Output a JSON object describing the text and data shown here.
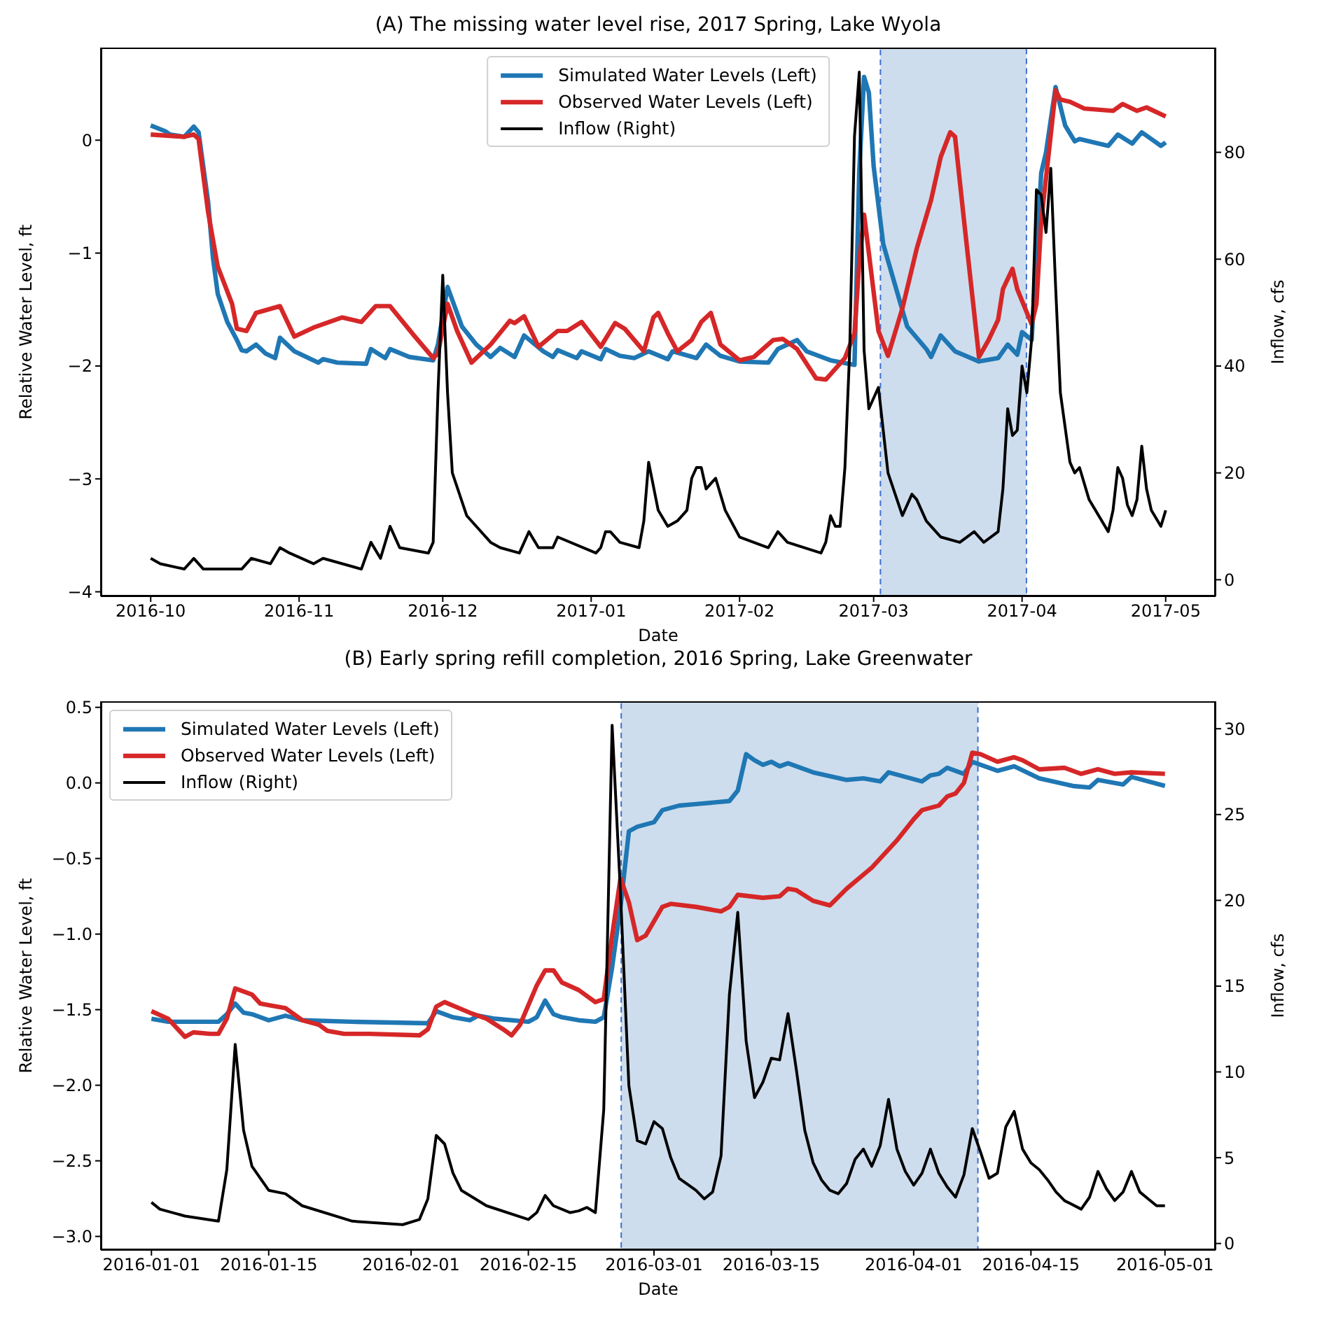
{
  "chart_data": [
    {
      "type": "line",
      "title": "(A) The missing water level rise, 2017 Spring, Lake Wyola",
      "xlabel": "Date",
      "ylabel": "Relative Water Level, ft",
      "y2label": "Inflow, cfs",
      "xlim": [
        "2016-09-20T14:00",
        "2017-05-11T10:00"
      ],
      "xticks": [
        {
          "value": "2016-10-01",
          "label": "2016-10"
        },
        {
          "value": "2016-11-01",
          "label": "2016-11"
        },
        {
          "value": "2016-12-01",
          "label": "2016-12"
        },
        {
          "value": "2017-01-01",
          "label": "2017-01"
        },
        {
          "value": "2017-02-01",
          "label": "2017-02"
        },
        {
          "value": "2017-03-01",
          "label": "2017-03"
        },
        {
          "value": "2017-04-01",
          "label": "2017-04"
        },
        {
          "value": "2017-05-01",
          "label": "2017-05"
        }
      ],
      "ylim": [
        -4.04,
        0.82
      ],
      "yticks": [
        {
          "value": -4,
          "label": "−4"
        },
        {
          "value": -3,
          "label": "−3"
        },
        {
          "value": -2,
          "label": "−2"
        },
        {
          "value": -1,
          "label": "−1"
        },
        0
      ],
      "y2lim": [
        -3.1,
        99.6
      ],
      "y2ticks": [
        0,
        20,
        40,
        60,
        80
      ],
      "legend": "top",
      "bands": [
        {
          "axis": "x",
          "from": "2017-03-02T10:00",
          "to": "2017-04-01T22:00",
          "color": "#c0d4e8"
        }
      ],
      "series": [
        {
          "name": "Simulated Water Levels (Left)",
          "color": "#1f77b4",
          "x": [
            "2016-10-01",
            "2016-10-04",
            "2016-10-05",
            "2016-10-08",
            "2016-10-10",
            "2016-10-11",
            "2016-10-13",
            "2016-10-14",
            "2016-10-15",
            "2016-10-17",
            "2016-10-19",
            "2016-10-20",
            "2016-10-21",
            "2016-10-23",
            "2016-10-25",
            "2016-10-27",
            "2016-10-28",
            "2016-10-31",
            "2016-11-05",
            "2016-11-06",
            "2016-11-09",
            "2016-11-15",
            "2016-11-16",
            "2016-11-19",
            "2016-11-20",
            "2016-11-24",
            "2016-11-29",
            "2016-11-30",
            "2016-12-02",
            "2016-12-05",
            "2016-12-08",
            "2016-12-11",
            "2016-12-13",
            "2016-12-16",
            "2016-12-18",
            "2016-12-22",
            "2016-12-24",
            "2016-12-25",
            "2016-12-29",
            "2016-12-30",
            "2017-01-03",
            "2017-01-04",
            "2017-01-07",
            "2017-01-10",
            "2017-01-13",
            "2017-01-17",
            "2017-01-18",
            "2017-01-23",
            "2017-01-25",
            "2017-01-28",
            "2017-02-01",
            "2017-02-07",
            "2017-02-09",
            "2017-02-11",
            "2017-02-13",
            "2017-02-15",
            "2017-02-20",
            "2017-02-25",
            "2017-02-26",
            "2017-02-27",
            "2017-02-28",
            "2017-03-01",
            "2017-03-03",
            "2017-03-06",
            "2017-03-08",
            "2017-03-12",
            "2017-03-13",
            "2017-03-15",
            "2017-03-18",
            "2017-03-23",
            "2017-03-27",
            "2017-03-29",
            "2017-03-31",
            "2017-04-01",
            "2017-04-03",
            "2017-04-05",
            "2017-04-06",
            "2017-04-08",
            "2017-04-10",
            "2017-04-12",
            "2017-04-13",
            "2017-04-19",
            "2017-04-21",
            "2017-04-24",
            "2017-04-26",
            "2017-04-30",
            "2017-05-01"
          ],
          "values": [
            0.13,
            0.08,
            0.05,
            0.03,
            0.12,
            0.07,
            -0.55,
            -1.04,
            -1.36,
            -1.61,
            -1.77,
            -1.86,
            -1.87,
            -1.81,
            -1.89,
            -1.93,
            -1.75,
            -1.87,
            -1.97,
            -1.94,
            -1.97,
            -1.98,
            -1.85,
            -1.93,
            -1.85,
            -1.92,
            -1.95,
            -1.81,
            -1.3,
            -1.65,
            -1.81,
            -1.92,
            -1.84,
            -1.92,
            -1.73,
            -1.87,
            -1.92,
            -1.86,
            -1.93,
            -1.87,
            -1.94,
            -1.85,
            -1.91,
            -1.93,
            -1.87,
            -1.94,
            -1.87,
            -1.93,
            -1.81,
            -1.91,
            -1.96,
            -1.97,
            -1.85,
            -1.81,
            -1.77,
            -1.87,
            -1.95,
            -1.99,
            -0.27,
            0.56,
            0.42,
            -0.23,
            -0.92,
            -1.36,
            -1.65,
            -1.85,
            -1.92,
            -1.73,
            -1.87,
            -1.96,
            -1.93,
            -1.81,
            -1.9,
            -1.7,
            -1.77,
            -0.29,
            -0.11,
            0.47,
            0.13,
            -0.01,
            0.01,
            -0.05,
            0.05,
            -0.03,
            0.07,
            -0.05,
            -0.02
          ]
        },
        {
          "name": "Observed Water Levels (Left)",
          "color": "#d62728",
          "x": [
            "2016-10-01",
            "2016-10-08",
            "2016-10-10",
            "2016-10-11",
            "2016-10-13",
            "2016-10-15",
            "2016-10-18",
            "2016-10-19",
            "2016-10-21",
            "2016-10-23",
            "2016-10-28",
            "2016-10-31",
            "2016-11-04",
            "2016-11-10",
            "2016-11-14",
            "2016-11-17",
            "2016-11-20",
            "2016-11-25",
            "2016-11-29",
            "2016-11-30",
            "2016-12-02",
            "2016-12-04",
            "2016-12-07",
            "2016-12-11",
            "2016-12-15",
            "2016-12-16",
            "2016-12-18",
            "2016-12-21",
            "2016-12-25",
            "2016-12-27",
            "2016-12-30",
            "2017-01-03",
            "2017-01-06",
            "2017-01-08",
            "2017-01-12",
            "2017-01-14",
            "2017-01-15",
            "2017-01-17",
            "2017-01-19",
            "2017-01-22",
            "2017-01-24",
            "2017-01-26",
            "2017-01-28",
            "2017-02-01",
            "2017-02-04",
            "2017-02-08",
            "2017-02-10",
            "2017-02-13",
            "2017-02-17",
            "2017-02-19",
            "2017-02-23",
            "2017-02-25",
            "2017-02-26",
            "2017-02-27",
            "2017-02-28",
            "2017-03-02",
            "2017-03-04",
            "2017-03-07",
            "2017-03-10",
            "2017-03-13",
            "2017-03-15",
            "2017-03-17",
            "2017-03-18",
            "2017-03-20",
            "2017-03-22",
            "2017-03-23",
            "2017-03-25",
            "2017-03-27",
            "2017-03-28",
            "2017-03-30",
            "2017-03-31",
            "2017-04-03",
            "2017-04-04",
            "2017-04-05",
            "2017-04-07",
            "2017-04-08",
            "2017-04-09",
            "2017-04-11",
            "2017-04-14",
            "2017-04-20",
            "2017-04-22",
            "2017-04-25",
            "2017-04-27",
            "2017-05-01"
          ],
          "values": [
            0.05,
            0.03,
            0.05,
            0.01,
            -0.64,
            -1.12,
            -1.45,
            -1.67,
            -1.69,
            -1.53,
            -1.47,
            -1.74,
            -1.66,
            -1.57,
            -1.61,
            -1.47,
            -1.47,
            -1.73,
            -1.93,
            -1.89,
            -1.45,
            -1.69,
            -1.97,
            -1.81,
            -1.6,
            -1.62,
            -1.56,
            -1.83,
            -1.69,
            -1.69,
            -1.61,
            -1.83,
            -1.62,
            -1.67,
            -1.87,
            -1.57,
            -1.53,
            -1.71,
            -1.87,
            -1.77,
            -1.61,
            -1.53,
            -1.81,
            -1.95,
            -1.92,
            -1.77,
            -1.76,
            -1.85,
            -2.11,
            -2.12,
            -1.93,
            -1.71,
            -1.08,
            -0.66,
            -1.0,
            -1.69,
            -1.91,
            -1.49,
            -0.96,
            -0.53,
            -0.15,
            0.07,
            0.03,
            -0.76,
            -1.53,
            -1.92,
            -1.77,
            -1.59,
            -1.32,
            -1.14,
            -1.32,
            -1.63,
            -1.45,
            -0.72,
            0.05,
            0.44,
            0.36,
            0.34,
            0.28,
            0.26,
            0.32,
            0.26,
            0.29,
            0.21
          ]
        },
        {
          "name": "Inflow (Right)",
          "color": "#000000",
          "axis": "y2",
          "x": [
            "2016-10-01",
            "2016-10-03",
            "2016-10-08",
            "2016-10-10",
            "2016-10-12",
            "2016-10-20",
            "2016-10-22",
            "2016-10-26",
            "2016-10-28",
            "2016-10-30",
            "2016-11-04",
            "2016-11-06",
            "2016-11-14",
            "2016-11-16",
            "2016-11-18",
            "2016-11-20",
            "2016-11-22",
            "2016-11-28",
            "2016-11-29",
            "2016-11-30",
            "2016-12-01",
            "2016-12-02",
            "2016-12-03",
            "2016-12-06",
            "2016-12-08",
            "2016-12-11",
            "2016-12-13",
            "2016-12-17",
            "2016-12-19",
            "2016-12-21",
            "2016-12-24",
            "2016-12-25",
            "2017-01-02",
            "2017-01-03",
            "2017-01-04",
            "2017-01-05",
            "2017-01-07",
            "2017-01-11",
            "2017-01-12",
            "2017-01-13",
            "2017-01-15",
            "2017-01-17",
            "2017-01-19",
            "2017-01-21",
            "2017-01-22",
            "2017-01-23",
            "2017-01-24",
            "2017-01-25",
            "2017-01-26",
            "2017-01-27",
            "2017-01-29",
            "2017-02-01",
            "2017-02-07",
            "2017-02-09",
            "2017-02-11",
            "2017-02-18",
            "2017-02-19",
            "2017-02-20",
            "2017-02-21",
            "2017-02-22",
            "2017-02-23",
            "2017-02-24",
            "2017-02-25",
            "2017-02-26",
            "2017-02-27",
            "2017-02-28",
            "2017-03-02",
            "2017-03-04",
            "2017-03-07",
            "2017-03-09",
            "2017-03-10",
            "2017-03-12",
            "2017-03-15",
            "2017-03-19",
            "2017-03-22",
            "2017-03-24",
            "2017-03-27",
            "2017-03-28",
            "2017-03-29",
            "2017-03-30",
            "2017-03-31",
            "2017-04-01",
            "2017-04-02",
            "2017-04-03",
            "2017-04-04",
            "2017-04-05",
            "2017-04-06",
            "2017-04-07",
            "2017-04-08",
            "2017-04-09",
            "2017-04-11",
            "2017-04-12",
            "2017-04-13",
            "2017-04-15",
            "2017-04-19",
            "2017-04-20",
            "2017-04-21",
            "2017-04-22",
            "2017-04-23",
            "2017-04-24",
            "2017-04-25",
            "2017-04-26",
            "2017-04-27",
            "2017-04-28",
            "2017-04-30",
            "2017-05-01"
          ],
          "values": [
            4,
            3,
            2,
            4,
            2,
            2,
            4,
            3,
            6,
            5,
            3,
            4,
            2,
            7,
            4,
            10,
            6,
            5,
            7,
            35,
            57,
            35,
            20,
            12,
            10,
            7,
            6,
            5,
            9,
            6,
            6,
            8,
            5,
            6,
            9,
            9,
            7,
            6,
            11,
            22,
            13,
            10,
            11,
            13,
            19,
            21,
            21,
            17,
            18,
            19,
            13,
            8,
            6,
            9,
            7,
            5,
            7,
            12,
            10,
            10,
            21,
            43,
            83,
            95,
            43,
            32,
            36,
            20,
            12,
            16,
            15,
            11,
            8,
            7,
            9,
            7,
            9,
            17,
            32,
            27,
            28,
            40,
            35,
            45,
            73,
            72,
            65,
            77,
            55,
            35,
            22,
            20,
            21,
            15,
            9,
            13,
            21,
            19,
            14,
            12,
            15,
            25,
            17,
            13,
            10,
            13
          ]
        }
      ]
    },
    {
      "type": "line",
      "title": "(B) Early spring refill completion, 2016 Spring, Lake Greenwater",
      "xlabel": "Date",
      "ylabel": "Relative Water Level, ft",
      "y2label": "Inflow, cfs",
      "xlim": [
        "2015-12-25T23:00",
        "2016-05-07T01:00"
      ],
      "xticks": [
        "2016-01-01",
        "2016-01-15",
        "2016-02-01",
        "2016-02-15",
        "2016-03-01",
        "2016-03-15",
        "2016-04-01",
        "2016-04-15",
        "2016-05-01"
      ],
      "ylim": [
        -3.09,
        0.54
      ],
      "yticks": [
        {
          "value": -3,
          "label": "−3.0"
        },
        {
          "value": -2.5,
          "label": "−2.5"
        },
        {
          "value": -2,
          "label": "−2.0"
        },
        {
          "value": -1.5,
          "label": "−1.5"
        },
        {
          "value": -1,
          "label": "−1.0"
        },
        {
          "value": -0.5,
          "label": "−0.5"
        },
        {
          "value": 0,
          "label": "0.0"
        },
        0.5
      ],
      "y2lim": [
        -0.38,
        31.6
      ],
      "y2ticks": [
        0,
        5,
        10,
        15,
        20,
        25,
        30
      ],
      "legend": "top left",
      "bands": [
        {
          "axis": "x",
          "from": "2016-02-26T02:00",
          "to": "2016-04-08T16:00",
          "color": "#c0d4e8"
        }
      ],
      "series": [
        {
          "name": "Simulated Water Levels (Left)",
          "color": "#1f77b4",
          "x": [
            "2016-01-01",
            "2016-01-03",
            "2016-01-09",
            "2016-01-10",
            "2016-01-11",
            "2016-01-12",
            "2016-01-13",
            "2016-01-15",
            "2016-01-17",
            "2016-01-19",
            "2016-01-25",
            "2016-02-03",
            "2016-02-04",
            "2016-02-06",
            "2016-02-08",
            "2016-02-09",
            "2016-02-11",
            "2016-02-15",
            "2016-02-16",
            "2016-02-17",
            "2016-02-18",
            "2016-02-19",
            "2016-02-21",
            "2016-02-23",
            "2016-02-24",
            "2016-02-25",
            "2016-02-26",
            "2016-02-27",
            "2016-02-28",
            "2016-03-01",
            "2016-03-02",
            "2016-03-04",
            "2016-03-06",
            "2016-03-10",
            "2016-03-11",
            "2016-03-12",
            "2016-03-13",
            "2016-03-14",
            "2016-03-15",
            "2016-03-16",
            "2016-03-17",
            "2016-03-20",
            "2016-03-24",
            "2016-03-26",
            "2016-03-28",
            "2016-03-29",
            "2016-04-02",
            "2016-04-03",
            "2016-04-04",
            "2016-04-05",
            "2016-04-07",
            "2016-04-08",
            "2016-04-11",
            "2016-04-13",
            "2016-04-16",
            "2016-04-20",
            "2016-04-22",
            "2016-04-23",
            "2016-04-26",
            "2016-04-27",
            "2016-05-01"
          ],
          "values": [
            -1.56,
            -1.58,
            -1.58,
            -1.53,
            -1.46,
            -1.52,
            -1.53,
            -1.57,
            -1.54,
            -1.57,
            -1.58,
            -1.59,
            -1.51,
            -1.55,
            -1.57,
            -1.54,
            -1.56,
            -1.58,
            -1.55,
            -1.44,
            -1.53,
            -1.55,
            -1.57,
            -1.58,
            -1.55,
            -1.22,
            -0.82,
            -0.32,
            -0.29,
            -0.26,
            -0.18,
            -0.15,
            -0.14,
            -0.12,
            -0.05,
            0.19,
            0.15,
            0.12,
            0.14,
            0.11,
            0.13,
            0.07,
            0.02,
            0.03,
            0.01,
            0.07,
            0.01,
            0.05,
            0.06,
            0.1,
            0.06,
            0.14,
            0.08,
            0.11,
            0.03,
            -0.02,
            -0.03,
            0.02,
            -0.01,
            0.04,
            -0.02
          ]
        },
        {
          "name": "Observed Water Levels (Left)",
          "color": "#d62728",
          "x": [
            "2016-01-01",
            "2016-01-03",
            "2016-01-05",
            "2016-01-06",
            "2016-01-08",
            "2016-01-09",
            "2016-01-10",
            "2016-01-11",
            "2016-01-13",
            "2016-01-14",
            "2016-01-15",
            "2016-01-17",
            "2016-01-19",
            "2016-01-21",
            "2016-01-22",
            "2016-01-24",
            "2016-01-27",
            "2016-02-02",
            "2016-02-03",
            "2016-02-04",
            "2016-02-05",
            "2016-02-08",
            "2016-02-10",
            "2016-02-12",
            "2016-02-13",
            "2016-02-14",
            "2016-02-16",
            "2016-02-17",
            "2016-02-18",
            "2016-02-19",
            "2016-02-21",
            "2016-02-23",
            "2016-02-24",
            "2016-02-25",
            "2016-02-26",
            "2016-02-27",
            "2016-02-28",
            "2016-02-29",
            "2016-03-02",
            "2016-03-03",
            "2016-03-06",
            "2016-03-08",
            "2016-03-09",
            "2016-03-10",
            "2016-03-11",
            "2016-03-14",
            "2016-03-16",
            "2016-03-17",
            "2016-03-18",
            "2016-03-20",
            "2016-03-22",
            "2016-03-24",
            "2016-03-27",
            "2016-03-30",
            "2016-04-01",
            "2016-04-02",
            "2016-04-04",
            "2016-04-05",
            "2016-04-06",
            "2016-04-07",
            "2016-04-08",
            "2016-04-09",
            "2016-04-11",
            "2016-04-13",
            "2016-04-14",
            "2016-04-16",
            "2016-04-19",
            "2016-04-21",
            "2016-04-23",
            "2016-04-25",
            "2016-04-27",
            "2016-05-01"
          ],
          "values": [
            -1.51,
            -1.56,
            -1.68,
            -1.65,
            -1.66,
            -1.66,
            -1.56,
            -1.36,
            -1.4,
            -1.46,
            -1.47,
            -1.49,
            -1.57,
            -1.6,
            -1.64,
            -1.66,
            -1.66,
            -1.67,
            -1.63,
            -1.48,
            -1.45,
            -1.52,
            -1.56,
            -1.63,
            -1.67,
            -1.6,
            -1.34,
            -1.24,
            -1.24,
            -1.32,
            -1.37,
            -1.45,
            -1.43,
            -1.01,
            -0.63,
            -0.79,
            -1.04,
            -1.01,
            -0.82,
            -0.8,
            -0.82,
            -0.84,
            -0.85,
            -0.82,
            -0.74,
            -0.76,
            -0.75,
            -0.7,
            -0.71,
            -0.78,
            -0.81,
            -0.7,
            -0.56,
            -0.38,
            -0.24,
            -0.18,
            -0.15,
            -0.09,
            -0.07,
            0.0,
            0.2,
            0.19,
            0.14,
            0.17,
            0.15,
            0.09,
            0.1,
            0.06,
            0.09,
            0.06,
            0.07,
            0.06
          ]
        },
        {
          "name": "Inflow (Right)",
          "color": "#000000",
          "axis": "y2",
          "x": [
            "2016-01-01",
            "2016-01-02",
            "2016-01-05",
            "2016-01-09",
            "2016-01-10",
            "2016-01-11",
            "2016-01-12",
            "2016-01-13",
            "2016-01-15",
            "2016-01-17",
            "2016-01-19",
            "2016-01-25",
            "2016-01-31",
            "2016-02-02",
            "2016-02-03",
            "2016-02-04",
            "2016-02-05",
            "2016-02-06",
            "2016-02-07",
            "2016-02-10",
            "2016-02-15",
            "2016-02-16",
            "2016-02-17",
            "2016-02-18",
            "2016-02-20",
            "2016-02-21",
            "2016-02-22",
            "2016-02-23",
            "2016-02-24",
            "2016-02-25",
            "2016-02-26",
            "2016-02-27",
            "2016-02-28",
            "2016-02-29",
            "2016-03-01",
            "2016-03-02",
            "2016-03-03",
            "2016-03-04",
            "2016-03-06",
            "2016-03-07",
            "2016-03-08",
            "2016-03-09",
            "2016-03-10",
            "2016-03-11",
            "2016-03-12",
            "2016-03-13",
            "2016-03-14",
            "2016-03-15",
            "2016-03-16",
            "2016-03-17",
            "2016-03-18",
            "2016-03-19",
            "2016-03-20",
            "2016-03-21",
            "2016-03-22",
            "2016-03-23",
            "2016-03-24",
            "2016-03-25",
            "2016-03-26",
            "2016-03-27",
            "2016-03-28",
            "2016-03-29",
            "2016-03-30",
            "2016-03-31",
            "2016-04-01",
            "2016-04-02",
            "2016-04-03",
            "2016-04-04",
            "2016-04-05",
            "2016-04-06",
            "2016-04-07",
            "2016-04-08",
            "2016-04-09",
            "2016-04-10",
            "2016-04-11",
            "2016-04-12",
            "2016-04-13",
            "2016-04-14",
            "2016-04-15",
            "2016-04-16",
            "2016-04-17",
            "2016-04-18",
            "2016-04-19",
            "2016-04-21",
            "2016-04-22",
            "2016-04-23",
            "2016-04-24",
            "2016-04-25",
            "2016-04-26",
            "2016-04-27",
            "2016-04-28",
            "2016-04-29",
            "2016-04-30",
            "2016-05-01"
          ],
          "values": [
            2.4,
            2.0,
            1.6,
            1.3,
            4.3,
            11.6,
            6.6,
            4.5,
            3.1,
            2.9,
            2.2,
            1.3,
            1.1,
            1.4,
            2.6,
            6.3,
            5.8,
            4.1,
            3.1,
            2.2,
            1.4,
            1.8,
            2.8,
            2.2,
            1.8,
            1.9,
            2.1,
            1.8,
            7.8,
            30.2,
            20.4,
            9.2,
            6.0,
            5.8,
            7.1,
            6.7,
            5.0,
            3.8,
            3.1,
            2.6,
            3.0,
            5.1,
            14.5,
            19.3,
            11.8,
            8.5,
            9.4,
            10.8,
            10.7,
            13.4,
            10.1,
            6.6,
            4.7,
            3.7,
            3.1,
            2.9,
            3.5,
            4.9,
            5.5,
            4.5,
            5.7,
            8.4,
            5.5,
            4.2,
            3.4,
            4.1,
            5.5,
            4.1,
            3.3,
            2.7,
            4.0,
            6.7,
            5.3,
            3.8,
            4.1,
            6.8,
            7.7,
            5.5,
            4.7,
            4.3,
            3.7,
            3.0,
            2.5,
            2.0,
            2.7,
            4.2,
            3.2,
            2.5,
            3.0,
            4.2,
            3.0,
            2.6,
            2.2,
            2.2
          ]
        }
      ]
    }
  ]
}
